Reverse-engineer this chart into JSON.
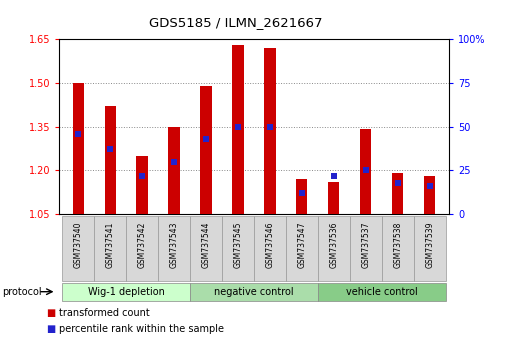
{
  "title": "GDS5185 / ILMN_2621667",
  "samples": [
    "GSM737540",
    "GSM737541",
    "GSM737542",
    "GSM737543",
    "GSM737544",
    "GSM737545",
    "GSM737546",
    "GSM737547",
    "GSM737536",
    "GSM737537",
    "GSM737538",
    "GSM737539"
  ],
  "transformed_count": [
    1.5,
    1.42,
    1.25,
    1.35,
    1.49,
    1.63,
    1.62,
    1.17,
    1.16,
    1.34,
    1.19,
    1.18
  ],
  "percentile_rank": [
    46,
    37,
    22,
    30,
    43,
    50,
    50,
    12,
    22,
    25,
    18,
    16
  ],
  "groups": [
    {
      "label": "Wig-1 depletion",
      "start": 0,
      "end": 4
    },
    {
      "label": "negative control",
      "start": 4,
      "end": 8
    },
    {
      "label": "vehicle control",
      "start": 8,
      "end": 12
    }
  ],
  "group_colors": [
    "#ccffcc",
    "#aaddaa",
    "#88cc88"
  ],
  "bar_color": "#cc0000",
  "dot_color": "#2222cc",
  "ylim_left": [
    1.05,
    1.65
  ],
  "ylim_right": [
    0,
    100
  ],
  "yticks_left": [
    1.05,
    1.2,
    1.35,
    1.5,
    1.65
  ],
  "yticks_right": [
    0,
    25,
    50,
    75,
    100
  ],
  "ytick_labels_right": [
    "0",
    "25",
    "50",
    "75",
    "100%"
  ],
  "grid_lines": [
    1.2,
    1.35,
    1.5
  ],
  "bar_width": 0.35,
  "legend_items": [
    {
      "label": "transformed count",
      "color": "#cc0000"
    },
    {
      "label": "percentile rank within the sample",
      "color": "#2222cc"
    }
  ]
}
